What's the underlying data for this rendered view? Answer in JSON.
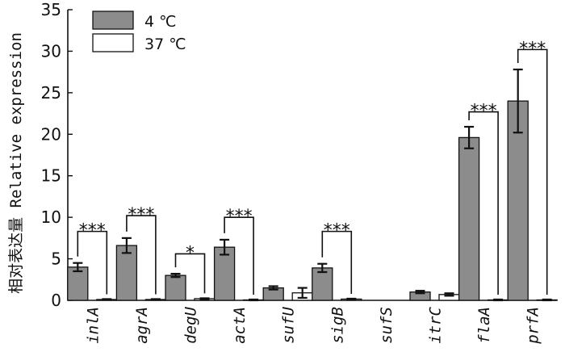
{
  "chart_data": {
    "type": "bar",
    "ylabel": "相对表达量 Relative expression",
    "ylim": [
      0,
      35
    ],
    "yticks": [
      0,
      5,
      10,
      15,
      20,
      25,
      30,
      35
    ],
    "categories": [
      "inlA",
      "agrA",
      "degU",
      "actA",
      "sufU",
      "sigB",
      "sufS",
      "itrC",
      "flaA",
      "prfA"
    ],
    "series": [
      {
        "name": "4 ℃",
        "color": "#8c8c8c",
        "values": [
          4.0,
          6.6,
          3.0,
          6.4,
          1.5,
          3.9,
          0.0,
          1.0,
          19.6,
          24.0
        ],
        "errors": [
          0.5,
          0.9,
          0.2,
          0.9,
          0.2,
          0.5,
          0.0,
          0.15,
          1.3,
          3.8
        ]
      },
      {
        "name": "37 ℃",
        "color": "#ffffff",
        "values": [
          0.1,
          0.1,
          0.2,
          0.05,
          0.9,
          0.15,
          0.0,
          0.7,
          0.05,
          0.05
        ],
        "errors": [
          0.05,
          0.05,
          0.05,
          0.05,
          0.6,
          0.05,
          0.0,
          0.15,
          0.05,
          0.05
        ]
      }
    ],
    "significance": [
      {
        "category": "inlA",
        "label": "***",
        "top": 8.3
      },
      {
        "category": "agrA",
        "label": "***",
        "top": 10.2
      },
      {
        "category": "degU",
        "label": "*",
        "top": 5.6
      },
      {
        "category": "actA",
        "label": "***",
        "top": 10.0
      },
      {
        "category": "sigB",
        "label": "***",
        "top": 8.3
      },
      {
        "category": "flaA",
        "label": "***",
        "top": 22.7
      },
      {
        "category": "prfA",
        "label": "***",
        "top": 30.2
      }
    ],
    "legend_position": "top-left",
    "grid": false
  }
}
